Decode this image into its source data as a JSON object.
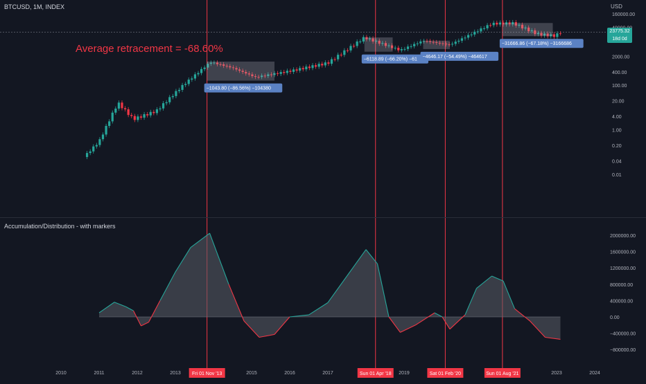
{
  "header": {
    "ticker": "BTCUSD, 1M, INDEX",
    "currency": "USD"
  },
  "indicator": {
    "title": "Accumulation/Distribution - with markers"
  },
  "annotation": {
    "average_retracement": "Average retracement = -68.60%"
  },
  "last_price": {
    "value": "23775.32",
    "countdown": "18d 0d"
  },
  "colors": {
    "background": "#131722",
    "up": "#26a69a",
    "down": "#f23645",
    "marker_line": "#f23645",
    "ad_line": "#26a69a",
    "ad_fill": "#5a5d66",
    "label_box": "#5b82c4"
  },
  "chart_data": [
    {
      "type": "candlestick",
      "title": "BTCUSD, 1M, INDEX",
      "y_scale": "log",
      "y_ticks": [
        "160000.00",
        "40000.00",
        "10000.00",
        "2000.00",
        "400.00",
        "100.00",
        "20.00",
        "4.00",
        "1.00",
        "0.20",
        "0.04",
        "0.01"
      ],
      "x_ticks": [
        "2010",
        "2011",
        "2012",
        "2013",
        "2015",
        "2016",
        "2017",
        "2019",
        "2023",
        "2024"
      ],
      "approx_close_path": [
        {
          "x": 2010.6,
          "close": 0.06
        },
        {
          "x": 2011.0,
          "close": 0.3
        },
        {
          "x": 2011.4,
          "close": 8
        },
        {
          "x": 2011.5,
          "close": 16
        },
        {
          "x": 2011.9,
          "close": 3
        },
        {
          "x": 2012.5,
          "close": 7
        },
        {
          "x": 2013.2,
          "close": 100
        },
        {
          "x": 2013.92,
          "close": 1100
        },
        {
          "x": 2014.5,
          "close": 600
        },
        {
          "x": 2015.1,
          "close": 230
        },
        {
          "x": 2016.0,
          "close": 430
        },
        {
          "x": 2017.0,
          "close": 1000
        },
        {
          "x": 2017.96,
          "close": 14000
        },
        {
          "x": 2018.9,
          "close": 3700
        },
        {
          "x": 2019.5,
          "close": 10000
        },
        {
          "x": 2020.2,
          "close": 6500
        },
        {
          "x": 2021.3,
          "close": 58000
        },
        {
          "x": 2021.86,
          "close": 61000
        },
        {
          "x": 2022.5,
          "close": 20000
        },
        {
          "x": 2022.96,
          "close": 16500
        },
        {
          "x": 2023.1,
          "close": 23775
        }
      ],
      "retracements": [
        {
          "label": "−1043.80 (−86.56%) −104380"
        },
        {
          "label": "−6118.89 (−66.20%) −61"
        },
        {
          "label": "−4646.17 (−54.49%) −464617"
        },
        {
          "label": "−31666.86 (−67.18%) −3166686"
        }
      ],
      "annotations": [
        "Average retracement = -68.60%"
      ]
    },
    {
      "type": "area",
      "title": "Accumulation/Distribution - with markers",
      "y_ticks": [
        "2000000.00",
        "1600000.00",
        "1200000.00",
        "800000.00",
        "400000.00",
        "0.00",
        "−400000.00",
        "−800000.00"
      ],
      "ylim": [
        -800000,
        2000000
      ],
      "points": [
        {
          "x": 2011.0,
          "y": 100000
        },
        {
          "x": 2011.4,
          "y": 360000
        },
        {
          "x": 2011.7,
          "y": 250000
        },
        {
          "x": 2011.9,
          "y": 150000
        },
        {
          "x": 2012.1,
          "y": -220000
        },
        {
          "x": 2012.3,
          "y": -130000
        },
        {
          "x": 2012.6,
          "y": 400000
        },
        {
          "x": 2013.0,
          "y": 1100000
        },
        {
          "x": 2013.4,
          "y": 1700000
        },
        {
          "x": 2013.9,
          "y": 2050000
        },
        {
          "x": 2014.4,
          "y": 800000
        },
        {
          "x": 2014.8,
          "y": -100000
        },
        {
          "x": 2015.2,
          "y": -500000
        },
        {
          "x": 2015.6,
          "y": -430000
        },
        {
          "x": 2016.0,
          "y": 0
        },
        {
          "x": 2016.5,
          "y": 50000
        },
        {
          "x": 2017.0,
          "y": 350000
        },
        {
          "x": 2017.5,
          "y": 1000000
        },
        {
          "x": 2018.0,
          "y": 1650000
        },
        {
          "x": 2018.3,
          "y": 1300000
        },
        {
          "x": 2018.6,
          "y": 0
        },
        {
          "x": 2018.9,
          "y": -380000
        },
        {
          "x": 2019.3,
          "y": -200000
        },
        {
          "x": 2019.8,
          "y": 100000
        },
        {
          "x": 2020.0,
          "y": 0
        },
        {
          "x": 2020.2,
          "y": -300000
        },
        {
          "x": 2020.6,
          "y": 50000
        },
        {
          "x": 2020.9,
          "y": 700000
        },
        {
          "x": 2021.3,
          "y": 1000000
        },
        {
          "x": 2021.6,
          "y": 880000
        },
        {
          "x": 2021.9,
          "y": 200000
        },
        {
          "x": 2022.3,
          "y": -100000
        },
        {
          "x": 2022.7,
          "y": -500000
        },
        {
          "x": 2023.1,
          "y": -550000
        }
      ]
    }
  ],
  "markers": [
    {
      "label": "Fri 01 Nov '13",
      "x": 2013.83
    },
    {
      "label": "Sun 01 Apr '18",
      "x": 2018.25
    },
    {
      "label": "Sat 01 Feb '20",
      "x": 2020.08
    },
    {
      "label": "Sun 01 Aug '21",
      "x": 2021.58
    }
  ]
}
